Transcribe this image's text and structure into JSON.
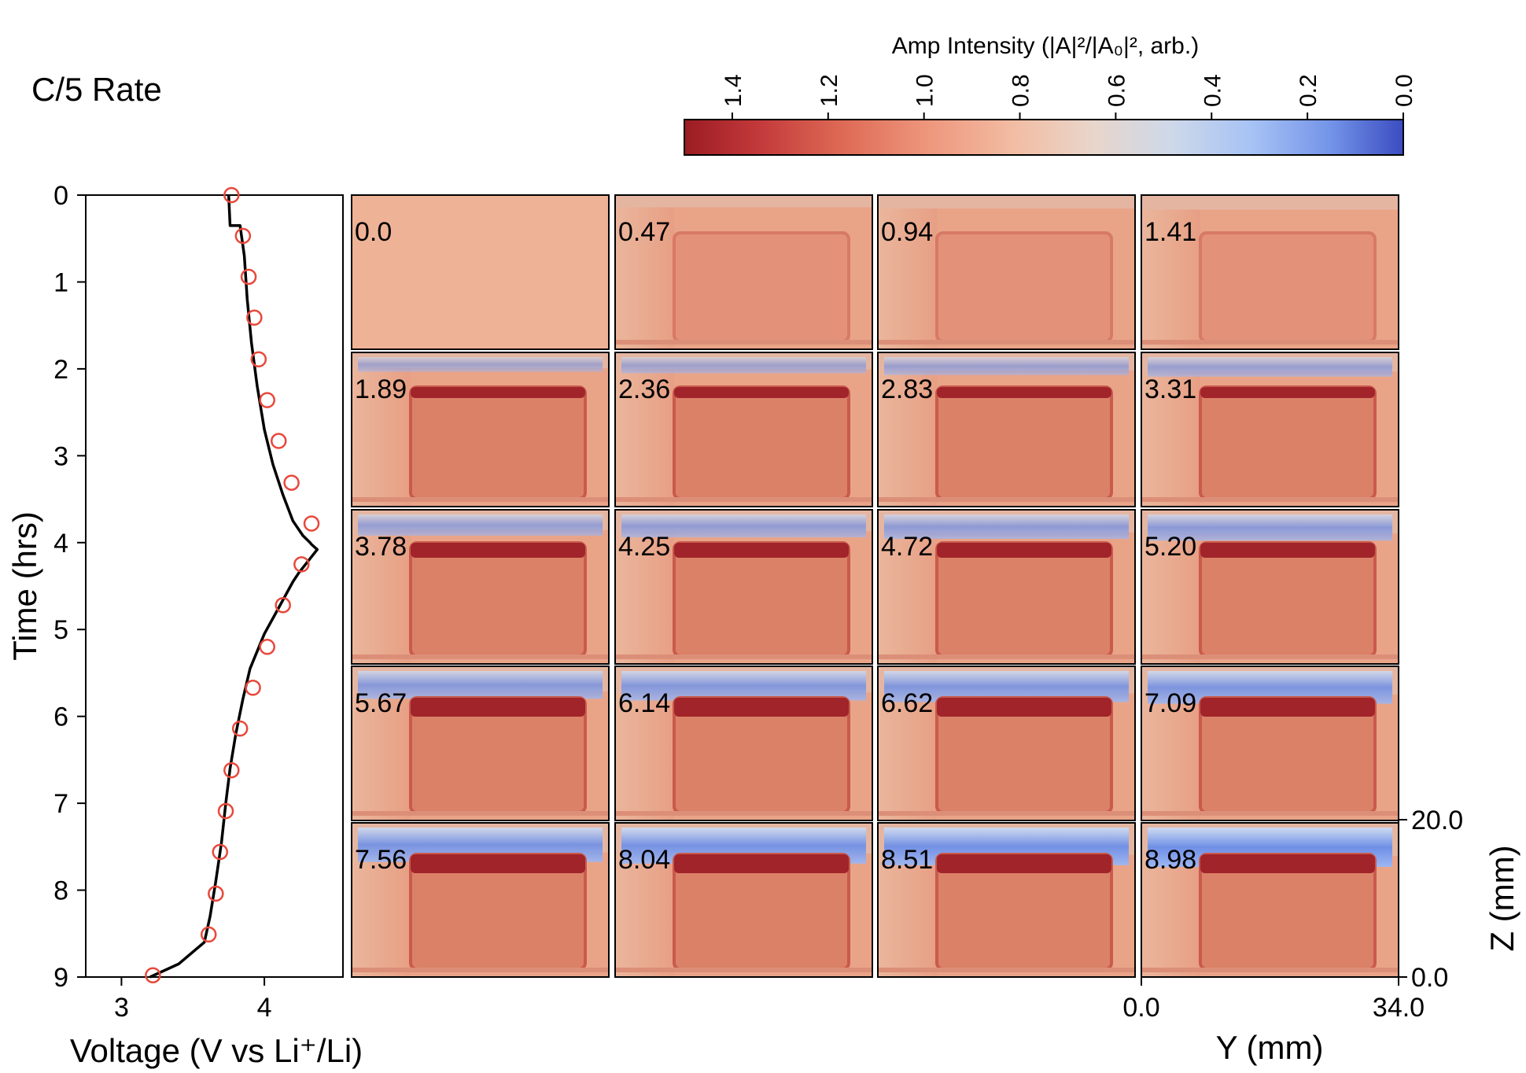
{
  "figure_title": "C/5 Rate",
  "colorbar": {
    "label": "Amp Intensity (|A|²/|A₀|², arb.)",
    "ticks": [
      "1.4",
      "1.2",
      "1.0",
      "0.8",
      "0.6",
      "0.4",
      "0.2",
      "0.0"
    ],
    "tick_values": [
      1.4,
      1.2,
      1.0,
      0.8,
      0.6,
      0.4,
      0.2,
      0.0
    ],
    "range": [
      0.0,
      1.5
    ],
    "colormap": "coolwarm",
    "colors": {
      "high": "#9b1c22",
      "mid": "#e9d3c6",
      "low": "#3b4cc0"
    }
  },
  "voltage_panel": {
    "xlabel": "Voltage (V vs Li⁺/Li)",
    "ylabel": "Time (hrs)",
    "xticks": [
      "3",
      "4"
    ],
    "xtick_values": [
      3,
      4
    ],
    "yticks": [
      "0",
      "1",
      "2",
      "3",
      "4",
      "5",
      "6",
      "7",
      "8",
      "9"
    ],
    "ytick_values": [
      0,
      1,
      2,
      3,
      4,
      5,
      6,
      7,
      8,
      9
    ],
    "xlim": [
      2.75,
      4.55
    ],
    "ylim": [
      9,
      0
    ],
    "line_color": "#000000",
    "marker_color": "#e8483a"
  },
  "maps_panel": {
    "rows": 5,
    "cols": 4,
    "panel_labels": [
      "0.0",
      "0.47",
      "0.94",
      "1.41",
      "1.89",
      "2.36",
      "2.83",
      "3.31",
      "3.78",
      "4.25",
      "4.72",
      "5.20",
      "5.67",
      "6.14",
      "6.62",
      "7.09",
      "7.56",
      "8.04",
      "8.51",
      "8.98"
    ],
    "xlabel": "Y (mm)",
    "ylabel": "Z (mm)",
    "xticks": [
      "0.0",
      "34.0"
    ],
    "yticks": [
      "0.0",
      "20.0"
    ],
    "xlim": [
      0.0,
      34.0
    ],
    "ylim": [
      0.0,
      20.0
    ]
  },
  "chart_data": {
    "type": "line",
    "title": "C/5 Rate",
    "xlabel": "Voltage (V vs Li⁺/Li)",
    "ylabel": "Time (hrs)",
    "xlim": [
      2.75,
      4.55
    ],
    "ylim": [
      9,
      0
    ],
    "grid": false,
    "series": [
      {
        "x": [
          3.75,
          3.76,
          3.83,
          3.86,
          3.88,
          3.91,
          3.95,
          4.0,
          4.06,
          4.13,
          4.2,
          4.27,
          4.32,
          4.33,
          4.37,
          4.24,
          4.2,
          4.1,
          4.0,
          3.9,
          3.85,
          3.8,
          3.76,
          3.73,
          3.7,
          3.66,
          3.62,
          3.58,
          3.4,
          3.2
        ],
        "y": [
          0.0,
          0.35,
          0.35,
          0.7,
          1.2,
          1.7,
          2.2,
          2.7,
          3.1,
          3.45,
          3.75,
          3.92,
          4.0,
          4.02,
          4.08,
          4.35,
          4.45,
          4.75,
          5.05,
          5.45,
          5.8,
          6.2,
          6.6,
          7.0,
          7.45,
          7.9,
          8.3,
          8.6,
          8.85,
          9.0
        ]
      },
      {
        "x": [
          3.77,
          3.85,
          3.89,
          3.93,
          3.96,
          4.02,
          4.1,
          4.19,
          4.33,
          4.26,
          4.13,
          4.02,
          3.92,
          3.83,
          3.77,
          3.73,
          3.69,
          3.66,
          3.61,
          3.22
        ],
        "y": [
          0.0,
          0.47,
          0.94,
          1.41,
          1.89,
          2.36,
          2.83,
          3.31,
          3.78,
          4.25,
          4.72,
          5.2,
          5.67,
          6.14,
          6.62,
          7.09,
          7.56,
          8.04,
          8.51,
          8.98
        ]
      }
    ]
  }
}
